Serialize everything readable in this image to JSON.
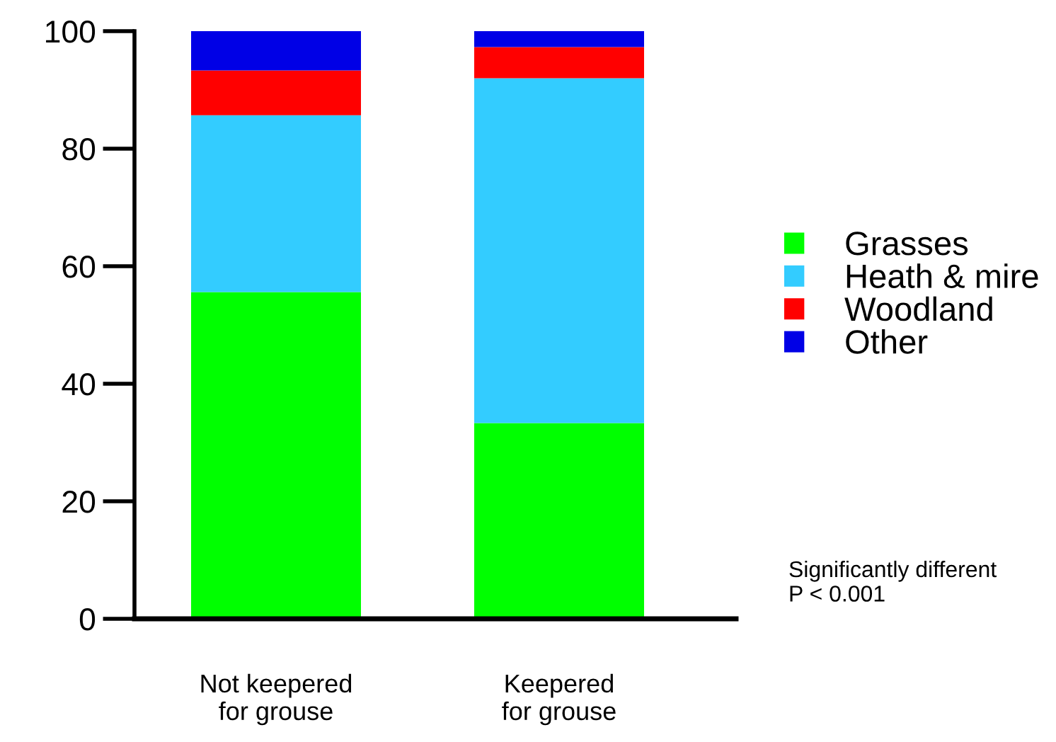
{
  "chart_data": {
    "type": "bar",
    "stacked": true,
    "categories": [
      "Not keepered\nfor grouse",
      "Keepered\nfor grouse"
    ],
    "series": [
      {
        "name": "Grasses",
        "color": "#00ff00",
        "values": [
          55.6,
          33.3
        ]
      },
      {
        "name": "Heath & mire",
        "color": "#33ccff",
        "values": [
          30.1,
          58.7
        ]
      },
      {
        "name": "Woodland",
        "color": "#ff0000",
        "values": [
          7.6,
          5.3
        ]
      },
      {
        "name": "Other",
        "color": "#0000e6",
        "values": [
          6.7,
          2.7
        ]
      }
    ],
    "ylim": [
      0,
      100
    ],
    "yticks": [
      0,
      20,
      40,
      60,
      80,
      100
    ],
    "grid": false,
    "legend": "right",
    "annotations": [
      "Significantly different\nP < 0.001"
    ]
  }
}
